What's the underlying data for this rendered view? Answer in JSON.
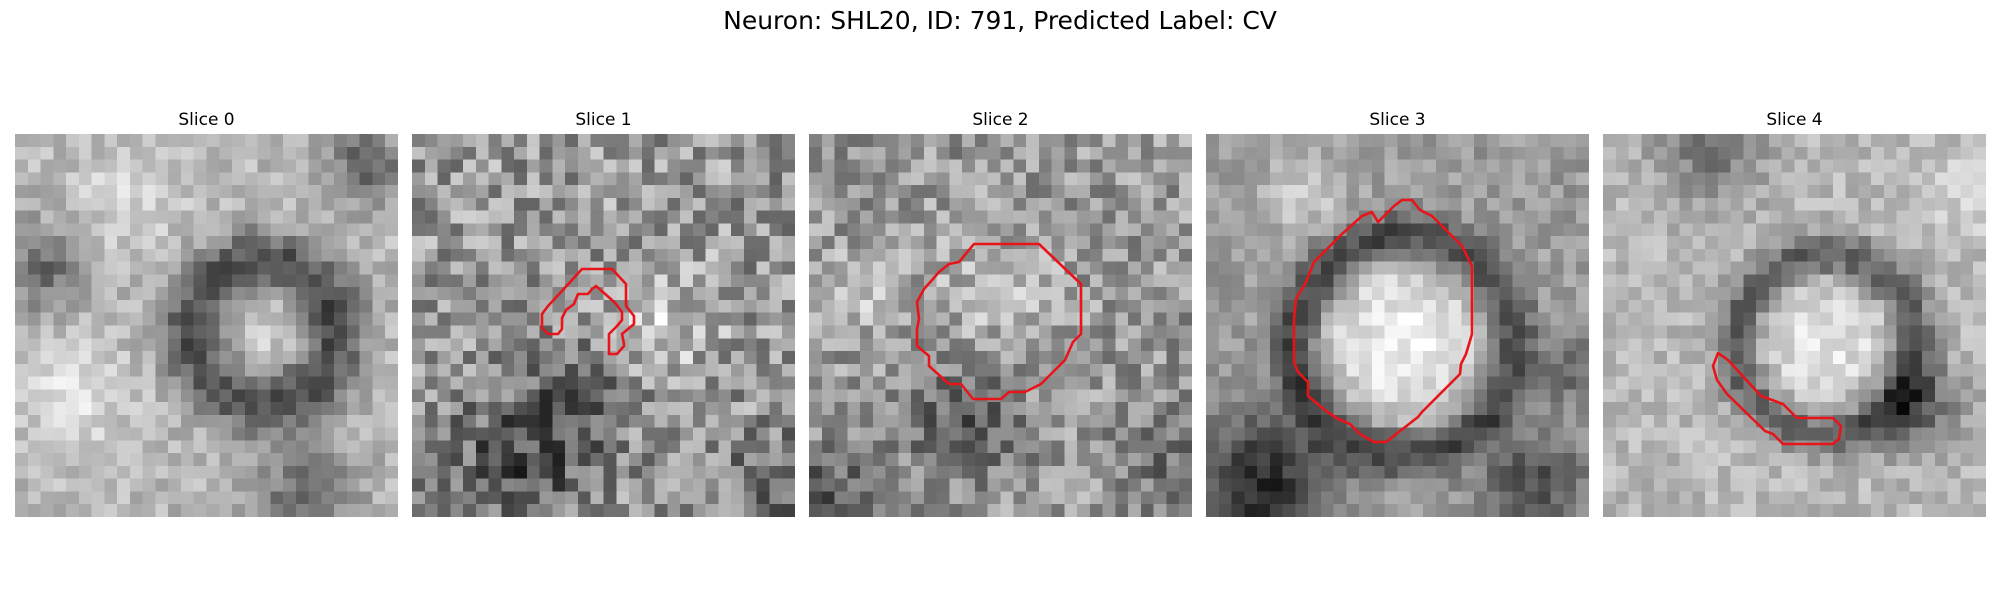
{
  "figure": {
    "suptitle": "Neuron: SHL20, ID: 791, Predicted Label: CV"
  },
  "colors": {
    "contour": "#e8141a"
  },
  "panels": [
    {
      "title": "Slice 0"
    },
    {
      "title": "Slice 1"
    },
    {
      "title": "Slice 2"
    },
    {
      "title": "Slice 3"
    },
    {
      "title": "Slice 4"
    }
  ]
}
